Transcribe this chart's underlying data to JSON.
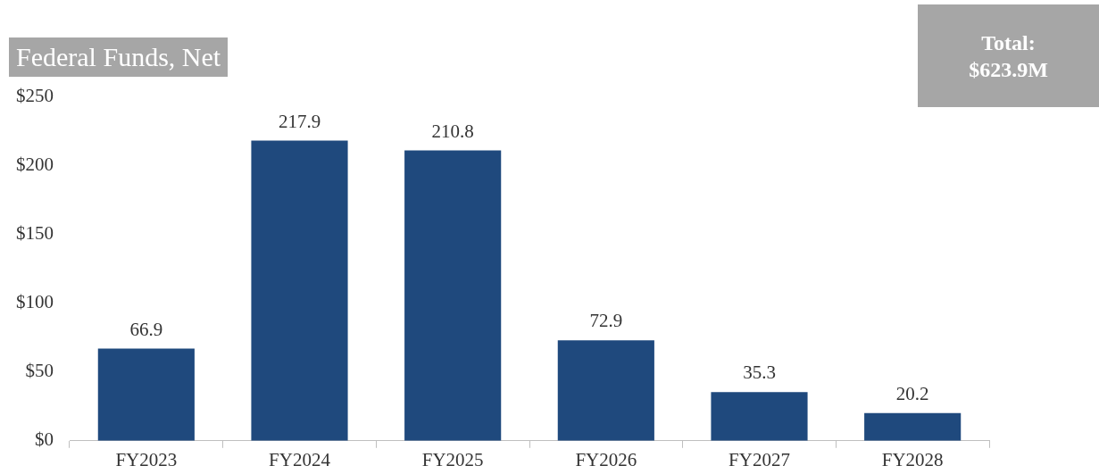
{
  "chart_data": {
    "type": "bar",
    "title": "Federal Funds, Net",
    "categories": [
      "FY2023",
      "FY2024",
      "FY2025",
      "FY2026",
      "FY2027",
      "FY2028"
    ],
    "values": [
      66.9,
      217.9,
      210.8,
      72.9,
      35.3,
      20.2
    ],
    "color": "#1f497d",
    "ylim": [
      0,
      250
    ],
    "yticks": [
      {
        "value": 0,
        "label": "$0"
      },
      {
        "value": 50,
        "label": "$50"
      },
      {
        "value": 100,
        "label": "$100"
      },
      {
        "value": 150,
        "label": "$150"
      },
      {
        "value": 200,
        "label": "$200"
      },
      {
        "value": 250,
        "label": "$250"
      }
    ],
    "data_labels": true,
    "annotations": [
      "Total:\n$623.9M"
    ]
  }
}
